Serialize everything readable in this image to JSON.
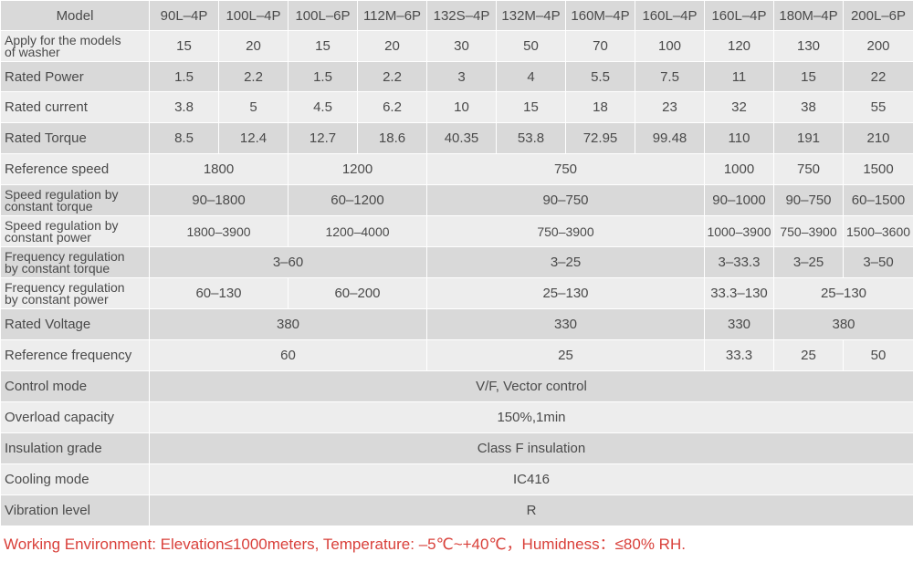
{
  "header": {
    "label": "Model",
    "models": [
      "90L–4P",
      "100L–4P",
      "100L–6P",
      "112M–6P",
      "132S–4P",
      "132M–4P",
      "160M–4P",
      "160L–4P",
      "160L–4P",
      "180M–4P",
      "200L–6P"
    ]
  },
  "rows": {
    "washer": {
      "label_1": "Apply for the models",
      "label_2": "of washer",
      "values": [
        "15",
        "20",
        "15",
        "20",
        "30",
        "50",
        "70",
        "100",
        "120",
        "130",
        "200"
      ]
    },
    "power": {
      "label": "Rated Power",
      "values": [
        "1.5",
        "2.2",
        "1.5",
        "2.2",
        "3",
        "4",
        "5.5",
        "7.5",
        "11",
        "15",
        "22"
      ]
    },
    "current": {
      "label": "Rated current",
      "values": [
        "3.8",
        "5",
        "4.5",
        "6.2",
        "10",
        "15",
        "18",
        "23",
        "32",
        "38",
        "55"
      ]
    },
    "torque": {
      "label": "Rated Torque",
      "values": [
        "8.5",
        "12.4",
        "12.7",
        "18.6",
        "40.35",
        "53.8",
        "72.95",
        "99.48",
        "110",
        "191",
        "210"
      ]
    },
    "ref_speed": {
      "label": "Reference speed",
      "values": [
        "1800",
        "1200",
        "750",
        "1000",
        "750",
        "1500"
      ]
    },
    "speed_torque": {
      "label_1": "Speed regulation by",
      "label_2": "constant torque",
      "values": [
        "90–1800",
        "60–1200",
        "90–750",
        "90–1000",
        "90–750",
        "60–1500"
      ]
    },
    "speed_power": {
      "label_1": "Speed regulation by",
      "label_2": "constant power",
      "values": [
        "1800–3900",
        "1200–4000",
        "750–3900",
        "1000–3900",
        "750–3900",
        "1500–3600"
      ]
    },
    "freq_torque": {
      "label_1": "Frequency regulation",
      "label_2": "by constant torque",
      "values": [
        "3–60",
        "3–25",
        "3–33.3",
        "3–25",
        "3–50"
      ]
    },
    "freq_power": {
      "label_1": "Frequency regulation",
      "label_2": "by constant power",
      "values": [
        "60–130",
        "60–200",
        "25–130",
        "33.3–130",
        "25–130"
      ]
    },
    "voltage": {
      "label": "Rated Voltage",
      "values": [
        "380",
        "330",
        "330",
        "380"
      ]
    },
    "ref_freq": {
      "label": "Reference frequency",
      "values": [
        "60",
        "25",
        "33.3",
        "25",
        "50"
      ]
    },
    "control": {
      "label": "Control mode",
      "value": "V/F, Vector control"
    },
    "overload": {
      "label": "Overload capacity",
      "value": "150%,1min"
    },
    "insulation": {
      "label": "Insulation grade",
      "value": "Class F insulation"
    },
    "cooling": {
      "label": "Cooling mode",
      "value": "IC416"
    },
    "vibration": {
      "label": "Vibration level",
      "value": "R"
    }
  },
  "footer": {
    "note": "Working Environment: Elevation≤1000meters, Temperature: –5℃~+40℃，Humidness：≤80% RH."
  },
  "colors": {
    "row_dark": "#d9d9d9",
    "row_light": "#ededed",
    "text": "#4a4a4a",
    "footer_text": "#d9403a"
  }
}
